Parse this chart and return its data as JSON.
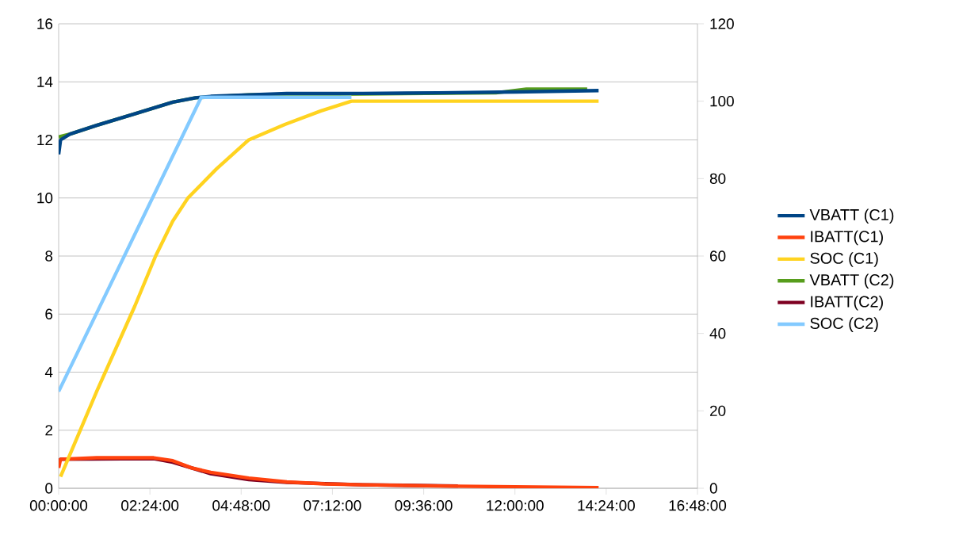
{
  "chart_data": {
    "type": "line",
    "xlim": [
      0,
      16.8
    ],
    "xticks": [
      {
        "value": 0,
        "label": "00:00:00"
      },
      {
        "value": 2.4,
        "label": "02:24:00"
      },
      {
        "value": 4.8,
        "label": "04:48:00"
      },
      {
        "value": 7.2,
        "label": "07:12:00"
      },
      {
        "value": 9.6,
        "label": "09:36:00"
      },
      {
        "value": 12,
        "label": "12:00:00"
      },
      {
        "value": 14.4,
        "label": "14:24:00"
      },
      {
        "value": 16.8,
        "label": "16:48:00"
      }
    ],
    "ylim": [
      0,
      16
    ],
    "yticks": [
      0,
      2,
      4,
      6,
      8,
      10,
      12,
      14,
      16
    ],
    "y2lim": [
      0,
      120
    ],
    "y2ticks": [
      0,
      20,
      40,
      60,
      80,
      100,
      120
    ],
    "grid": "y",
    "legend": "right",
    "marker": "none",
    "line_style": "solid",
    "series": [
      {
        "name": "VBATT (C1)",
        "color": "#004586",
        "x": [
          0,
          0.05,
          0.3,
          1,
          2,
          3,
          3.6,
          4,
          5,
          6,
          8,
          10,
          12,
          14.2
        ],
        "values": [
          11.5,
          12.0,
          12.2,
          12.5,
          12.9,
          13.3,
          13.45,
          13.5,
          13.55,
          13.6,
          13.6,
          13.62,
          13.65,
          13.7
        ]
      },
      {
        "name": "IBATT(C1)",
        "color": "#ff420e",
        "x": [
          0,
          0.05,
          1,
          2.5,
          3,
          3.5,
          4,
          5,
          6,
          7,
          8,
          10,
          12,
          14.2
        ],
        "values": [
          0.7,
          1.0,
          1.05,
          1.05,
          0.95,
          0.7,
          0.55,
          0.35,
          0.22,
          0.15,
          0.12,
          0.08,
          0.05,
          0.02
        ]
      },
      {
        "name": "SOC (C1)",
        "color": "#ffd320",
        "axis": "y2",
        "x": [
          0.05,
          1,
          2,
          2.55,
          3,
          3.4,
          4.15,
          5,
          5.95,
          6.9,
          7.7,
          14.2
        ],
        "values": [
          3,
          25,
          47,
          60,
          69,
          75,
          82.5,
          90,
          94,
          97.5,
          100,
          100
        ]
      },
      {
        "name": "VBATT (C2)",
        "color": "#579d1c",
        "x": [
          0,
          0.3,
          1,
          2,
          3,
          3.6,
          5,
          11.5,
          12.3,
          13.9
        ],
        "values": [
          12.1,
          12.2,
          12.5,
          12.9,
          13.3,
          13.45,
          13.55,
          13.62,
          13.75,
          13.75
        ]
      },
      {
        "name": "IBATT(C2)",
        "color": "#7e0021",
        "x": [
          0,
          0.05,
          2.5,
          3,
          4,
          5,
          6,
          8,
          10.5
        ],
        "values": [
          0.9,
          1.0,
          1.02,
          0.9,
          0.5,
          0.3,
          0.2,
          0.12,
          0.08
        ]
      },
      {
        "name": "SOC (C2)",
        "color": "#83caff",
        "axis": "y2",
        "x": [
          0,
          3.75,
          7.7
        ],
        "values": [
          25,
          101,
          101
        ]
      }
    ]
  }
}
